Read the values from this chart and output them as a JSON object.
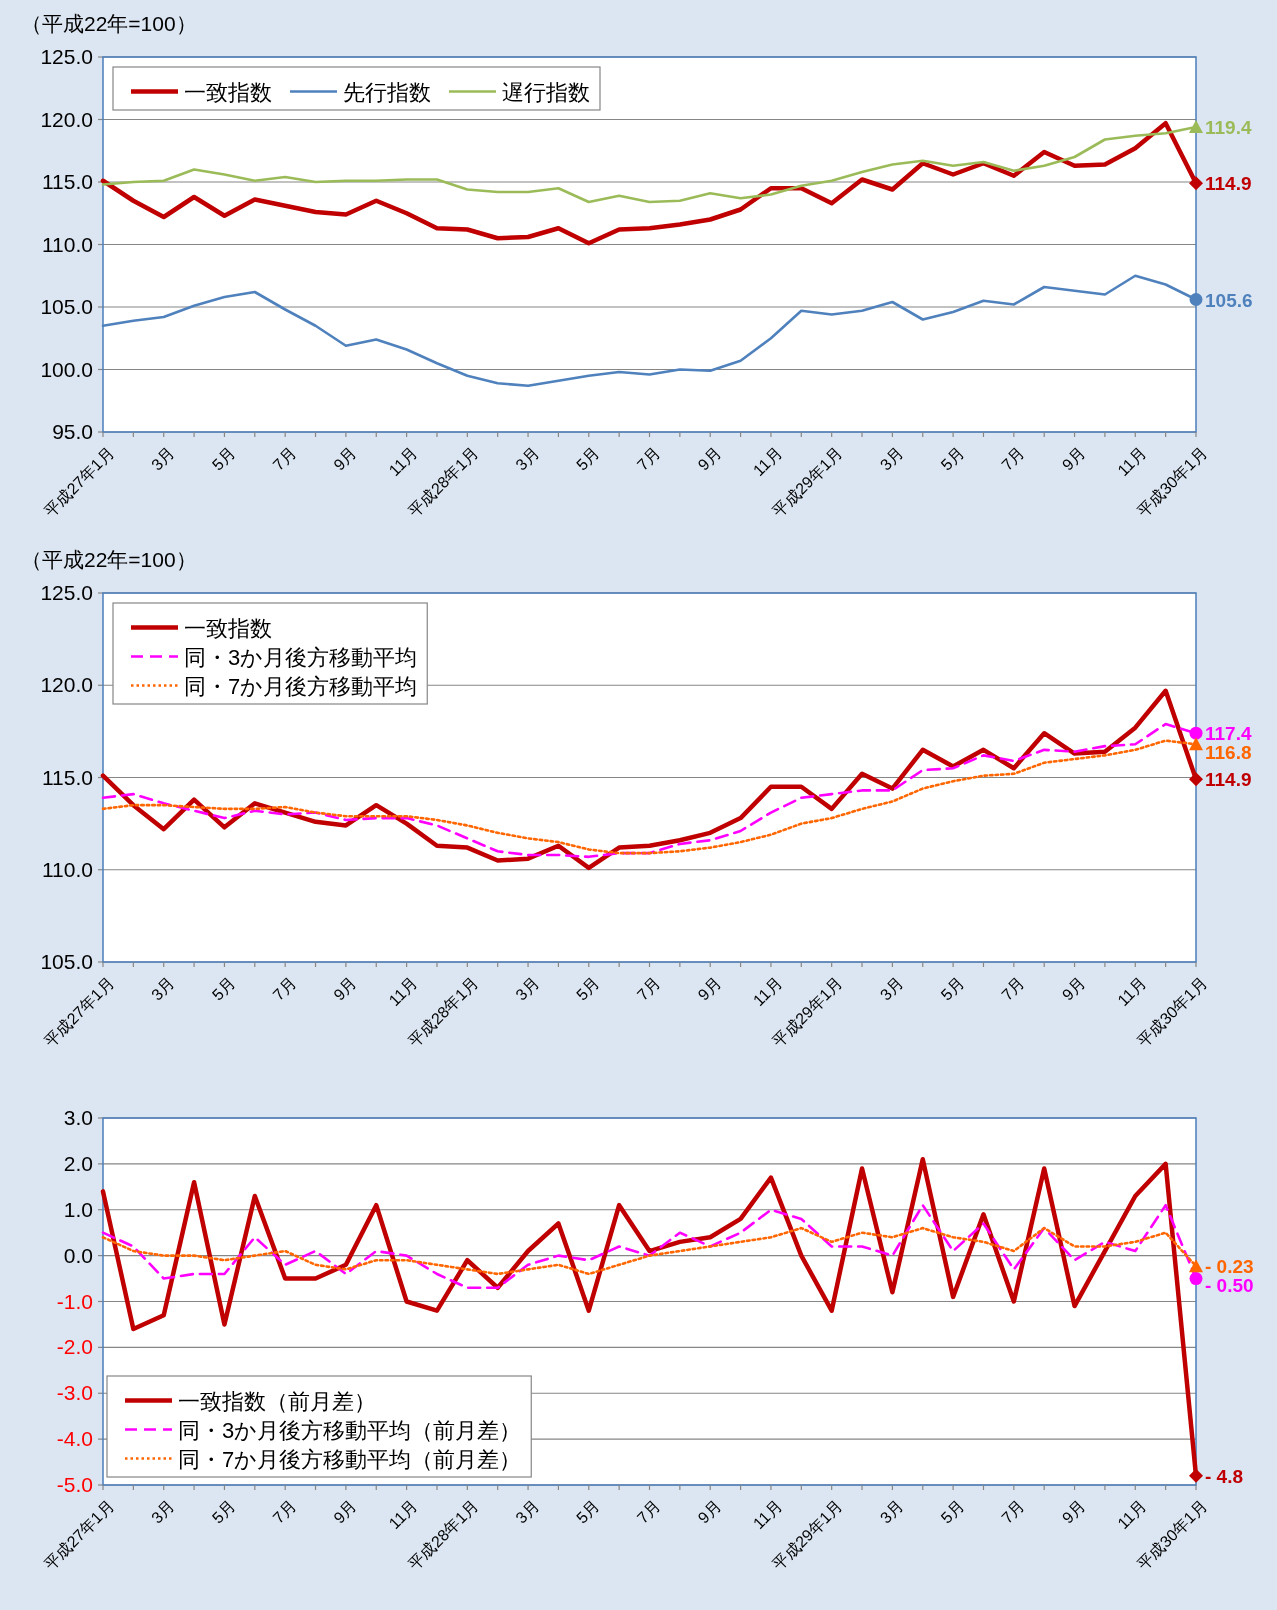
{
  "chart_data": [
    {
      "type": "line",
      "ylabel": "（平成22年=100）",
      "categories": [
        "平成27年1月",
        null,
        "3月",
        null,
        "5月",
        null,
        "7月",
        null,
        "9月",
        null,
        "11月",
        null,
        "平成28年1月",
        null,
        "3月",
        null,
        "5月",
        null,
        "7月",
        null,
        "9月",
        null,
        "11月",
        null,
        "平成29年1月",
        null,
        "3月",
        null,
        "5月",
        null,
        "7月",
        null,
        "9月",
        null,
        "11月",
        null,
        "平成30年1月"
      ],
      "ylim": [
        95,
        125
      ],
      "yticks": [
        {
          "value": 95,
          "label": "95.0"
        },
        {
          "value": 100,
          "label": "100.0"
        },
        {
          "value": 105,
          "label": "105.0"
        },
        {
          "value": 110,
          "label": "110.0"
        },
        {
          "value": 115,
          "label": "115.0"
        },
        {
          "value": 120,
          "label": "120.0"
        },
        {
          "value": 125,
          "label": "125.0"
        }
      ],
      "grid": "y",
      "legend": "top left",
      "series": [
        {
          "name": "一致指数",
          "color": "#c00000",
          "line_style": "solid",
          "values": [
            115.1,
            113.5,
            112.2,
            113.8,
            112.3,
            113.6,
            113.1,
            112.6,
            112.4,
            113.5,
            112.5,
            111.3,
            111.2,
            110.5,
            110.6,
            111.3,
            110.1,
            111.2,
            111.3,
            111.6,
            112.0,
            112.8,
            114.5,
            114.5,
            113.3,
            115.2,
            114.4,
            116.5,
            115.6,
            116.5,
            115.5,
            117.4,
            116.3,
            116.4,
            117.7,
            119.7,
            114.9
          ],
          "value_labels": [
            null,
            null,
            null,
            null,
            null,
            null,
            null,
            null,
            null,
            null,
            null,
            null,
            null,
            null,
            null,
            null,
            null,
            null,
            null,
            null,
            null,
            null,
            null,
            null,
            null,
            null,
            null,
            null,
            null,
            null,
            null,
            null,
            null,
            null,
            null,
            null,
            "114.9"
          ]
        },
        {
          "name": "先行指数",
          "color": "#4f81bd",
          "line_style": "solid",
          "values": [
            103.5,
            103.9,
            104.2,
            105.1,
            105.8,
            106.2,
            104.8,
            103.5,
            101.9,
            102.4,
            101.6,
            100.5,
            99.5,
            98.9,
            98.7,
            99.1,
            99.5,
            99.8,
            99.6,
            100.0,
            99.9,
            100.7,
            102.5,
            104.7,
            104.4,
            104.7,
            105.4,
            104.0,
            104.6,
            105.5,
            105.2,
            106.6,
            106.3,
            106.0,
            107.5,
            106.8,
            105.6
          ],
          "value_labels": [
            null,
            null,
            null,
            null,
            null,
            null,
            null,
            null,
            null,
            null,
            null,
            null,
            null,
            null,
            null,
            null,
            null,
            null,
            null,
            null,
            null,
            null,
            null,
            null,
            null,
            null,
            null,
            null,
            null,
            null,
            null,
            null,
            null,
            null,
            null,
            null,
            "105.6"
          ]
        },
        {
          "name": "遅行指数",
          "color": "#9bbb59",
          "line_style": "solid",
          "values": [
            114.8,
            115.0,
            115.1,
            116.0,
            115.6,
            115.1,
            115.4,
            115.0,
            115.1,
            115.1,
            115.2,
            115.2,
            114.4,
            114.2,
            114.2,
            114.5,
            113.4,
            113.9,
            113.4,
            113.5,
            114.1,
            113.7,
            114.0,
            114.7,
            115.1,
            115.8,
            116.4,
            116.7,
            116.3,
            116.6,
            115.9,
            116.3,
            117.0,
            118.4,
            118.7,
            118.9,
            119.4
          ],
          "value_labels": [
            null,
            null,
            null,
            null,
            null,
            null,
            null,
            null,
            null,
            null,
            null,
            null,
            null,
            null,
            null,
            null,
            null,
            null,
            null,
            null,
            null,
            null,
            null,
            null,
            null,
            null,
            null,
            null,
            null,
            null,
            null,
            null,
            null,
            null,
            null,
            null,
            "119.4"
          ]
        }
      ]
    },
    {
      "type": "line",
      "ylabel": "（平成22年=100）",
      "categories": [
        "平成27年1月",
        null,
        "3月",
        null,
        "5月",
        null,
        "7月",
        null,
        "9月",
        null,
        "11月",
        null,
        "平成28年1月",
        null,
        "3月",
        null,
        "5月",
        null,
        "7月",
        null,
        "9月",
        null,
        "11月",
        null,
        "平成29年1月",
        null,
        "3月",
        null,
        "5月",
        null,
        "7月",
        null,
        "9月",
        null,
        "11月",
        null,
        "平成30年1月"
      ],
      "ylim": [
        105,
        125
      ],
      "yticks": [
        {
          "value": 105,
          "label": "105.0"
        },
        {
          "value": 110,
          "label": "110.0"
        },
        {
          "value": 115,
          "label": "115.0"
        },
        {
          "value": 120,
          "label": "120.0"
        },
        {
          "value": 125,
          "label": "125.0"
        }
      ],
      "grid": "y",
      "legend": "top left",
      "series": [
        {
          "name": "一致指数",
          "color": "#c00000",
          "line_style": "solid",
          "values": [
            115.1,
            113.5,
            112.2,
            113.8,
            112.3,
            113.6,
            113.1,
            112.6,
            112.4,
            113.5,
            112.5,
            111.3,
            111.2,
            110.5,
            110.6,
            111.3,
            110.1,
            111.2,
            111.3,
            111.6,
            112.0,
            112.8,
            114.5,
            114.5,
            113.3,
            115.2,
            114.4,
            116.5,
            115.6,
            116.5,
            115.5,
            117.4,
            116.3,
            116.4,
            117.7,
            119.7,
            114.9
          ],
          "value_labels": [
            null,
            null,
            null,
            null,
            null,
            null,
            null,
            null,
            null,
            null,
            null,
            null,
            null,
            null,
            null,
            null,
            null,
            null,
            null,
            null,
            null,
            null,
            null,
            null,
            null,
            null,
            null,
            null,
            null,
            null,
            null,
            null,
            null,
            null,
            null,
            null,
            "114.9"
          ]
        },
        {
          "name": "同・3か月後方移動平均",
          "color": "#ff00ff",
          "line_style": "dashed",
          "values": [
            113.9,
            114.1,
            113.6,
            113.2,
            112.8,
            113.2,
            113.0,
            113.1,
            112.7,
            112.8,
            112.8,
            112.4,
            111.7,
            111.0,
            110.8,
            110.8,
            110.7,
            110.9,
            110.9,
            111.4,
            111.6,
            112.1,
            113.1,
            113.9,
            114.1,
            114.3,
            114.3,
            115.4,
            115.5,
            116.2,
            115.9,
            116.5,
            116.4,
            116.7,
            116.8,
            117.9,
            117.4
          ],
          "value_labels": [
            null,
            null,
            null,
            null,
            null,
            null,
            null,
            null,
            null,
            null,
            null,
            null,
            null,
            null,
            null,
            null,
            null,
            null,
            null,
            null,
            null,
            null,
            null,
            null,
            null,
            null,
            null,
            null,
            null,
            null,
            null,
            null,
            null,
            null,
            null,
            null,
            "117.4"
          ]
        },
        {
          "name": "同・7か月後方移動平均",
          "color": "#ff6600",
          "line_style": "dotted",
          "values": [
            113.3,
            113.5,
            113.5,
            113.4,
            113.3,
            113.3,
            113.4,
            113.1,
            112.9,
            112.9,
            112.9,
            112.7,
            112.4,
            112.0,
            111.7,
            111.5,
            111.1,
            110.9,
            110.9,
            111.0,
            111.2,
            111.5,
            111.9,
            112.5,
            112.8,
            113.3,
            113.7,
            114.4,
            114.8,
            115.1,
            115.2,
            115.8,
            116.0,
            116.2,
            116.5,
            117.0,
            116.8
          ],
          "value_labels": [
            null,
            null,
            null,
            null,
            null,
            null,
            null,
            null,
            null,
            null,
            null,
            null,
            null,
            null,
            null,
            null,
            null,
            null,
            null,
            null,
            null,
            null,
            null,
            null,
            null,
            null,
            null,
            null,
            null,
            null,
            null,
            null,
            null,
            null,
            null,
            null,
            "116.8"
          ]
        }
      ]
    },
    {
      "type": "line",
      "categories": [
        "平成27年1月",
        null,
        "3月",
        null,
        "5月",
        null,
        "7月",
        null,
        "9月",
        null,
        "11月",
        null,
        "平成28年1月",
        null,
        "3月",
        null,
        "5月",
        null,
        "7月",
        null,
        "9月",
        null,
        "11月",
        null,
        "平成29年1月",
        null,
        "3月",
        null,
        "5月",
        null,
        "7月",
        null,
        "9月",
        null,
        "11月",
        null,
        "平成30年1月"
      ],
      "ylim": [
        -5,
        3
      ],
      "yticks": [
        {
          "value": -5,
          "label": "-5.0"
        },
        {
          "value": -4,
          "label": "-4.0"
        },
        {
          "value": -3,
          "label": "-3.0"
        },
        {
          "value": -2,
          "label": "-2.0"
        },
        {
          "value": -1,
          "label": "-1.0"
        },
        {
          "value": 0,
          "label": "0.0"
        },
        {
          "value": 1,
          "label": "1.0"
        },
        {
          "value": 2,
          "label": "2.0"
        },
        {
          "value": 3,
          "label": "3.0"
        }
      ],
      "grid": "y",
      "legend": "bottom left",
      "series": [
        {
          "name": "一致指数（前月差）",
          "color": "#c00000",
          "line_style": "solid",
          "values": [
            1.4,
            -1.6,
            -1.3,
            1.6,
            -1.5,
            1.3,
            -0.5,
            -0.5,
            -0.2,
            1.1,
            -1.0,
            -1.2,
            -0.1,
            -0.7,
            0.1,
            0.7,
            -1.2,
            1.1,
            0.1,
            0.3,
            0.4,
            0.8,
            1.7,
            0.0,
            -1.2,
            1.9,
            -0.8,
            2.1,
            -0.9,
            0.9,
            -1.0,
            1.9,
            -1.1,
            0.1,
            1.3,
            2.0,
            -4.8
          ],
          "value_labels": [
            null,
            null,
            null,
            null,
            null,
            null,
            null,
            null,
            null,
            null,
            null,
            null,
            null,
            null,
            null,
            null,
            null,
            null,
            null,
            null,
            null,
            null,
            null,
            null,
            null,
            null,
            null,
            null,
            null,
            null,
            null,
            null,
            null,
            null,
            null,
            null,
            "- 4.8"
          ]
        },
        {
          "name": "同・3か月後方移動平均（前月差）",
          "color": "#ff00ff",
          "line_style": "dashed",
          "values": [
            0.5,
            0.2,
            -0.5,
            -0.4,
            -0.4,
            0.4,
            -0.2,
            0.1,
            -0.4,
            0.1,
            0.0,
            -0.4,
            -0.7,
            -0.7,
            -0.2,
            0.0,
            -0.1,
            0.2,
            0.0,
            0.5,
            0.2,
            0.5,
            1.0,
            0.8,
            0.2,
            0.2,
            0.0,
            1.1,
            0.1,
            0.7,
            -0.3,
            0.6,
            -0.1,
            0.3,
            0.1,
            1.1,
            -0.5
          ],
          "value_labels": [
            null,
            null,
            null,
            null,
            null,
            null,
            null,
            null,
            null,
            null,
            null,
            null,
            null,
            null,
            null,
            null,
            null,
            null,
            null,
            null,
            null,
            null,
            null,
            null,
            null,
            null,
            null,
            null,
            null,
            null,
            null,
            null,
            null,
            null,
            null,
            null,
            "- 0.50"
          ]
        },
        {
          "name": "同・7か月後方移動平均（前月差）",
          "color": "#ff6600",
          "line_style": "dotted",
          "values": [
            0.4,
            0.1,
            0.0,
            0.0,
            -0.1,
            0.0,
            0.1,
            -0.2,
            -0.3,
            -0.1,
            -0.1,
            -0.2,
            -0.3,
            -0.4,
            -0.3,
            -0.2,
            -0.4,
            -0.2,
            0.0,
            0.1,
            0.2,
            0.3,
            0.4,
            0.6,
            0.3,
            0.5,
            0.4,
            0.6,
            0.4,
            0.3,
            0.1,
            0.6,
            0.2,
            0.2,
            0.3,
            0.5,
            -0.23
          ],
          "value_labels": [
            null,
            null,
            null,
            null,
            null,
            null,
            null,
            null,
            null,
            null,
            null,
            null,
            null,
            null,
            null,
            null,
            null,
            null,
            null,
            null,
            null,
            null,
            null,
            null,
            null,
            null,
            null,
            null,
            null,
            null,
            null,
            null,
            null,
            null,
            null,
            null,
            "- 0.23"
          ]
        }
      ]
    }
  ]
}
